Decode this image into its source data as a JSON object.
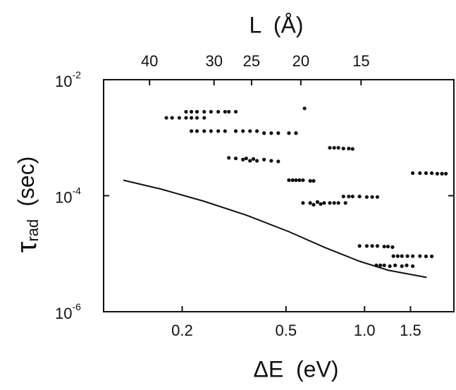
{
  "chart_data": {
    "type": "scatter",
    "x_label": "ΔE  (eV)",
    "top_x_label": "L  (Å)",
    "y_label": {
      "symbol": "τ",
      "subscript": "rad",
      "unit": "(sec)"
    },
    "xscale": "log",
    "yscale": "log",
    "xlim": [
      0.1,
      2.2
    ],
    "ylim": [
      1e-06,
      0.01
    ],
    "xticks": [
      0.2,
      0.5,
      {
        "value": 1,
        "label": "1.0"
      },
      1.5
    ],
    "top_xticks": [
      {
        "value": 0.15,
        "label": "40"
      },
      {
        "value": 0.265,
        "label": "30"
      },
      {
        "value": 0.369,
        "label": "25"
      },
      {
        "value": 0.57,
        "label": "20"
      },
      {
        "value": 0.97,
        "label": "15"
      }
    ],
    "yticks": [
      {
        "value": 0.01,
        "label": "10",
        "exponent": "-2"
      },
      {
        "value": 0.0001,
        "label": "10",
        "exponent": "-4"
      },
      {
        "value": 1e-06,
        "label": "10",
        "exponent": "-6"
      }
    ],
    "series": [
      {
        "type": "scatter",
        "color": "#111111",
        "x": [
          0.174,
          0.183,
          0.195,
          0.207,
          0.217,
          0.228,
          0.243
        ],
        "y": [
          0.0022,
          0.0022,
          0.0022,
          0.0022,
          0.0022,
          0.0022,
          0.0022
        ]
      },
      {
        "type": "scatter",
        "color": "#111111",
        "x": [
          0.207,
          0.217,
          0.228,
          0.243,
          0.258,
          0.275,
          0.292,
          0.302,
          0.321
        ],
        "y": [
          0.0028,
          0.0028,
          0.0028,
          0.0028,
          0.0028,
          0.0028,
          0.0028,
          0.0028,
          0.0028
        ]
      },
      {
        "type": "scatter",
        "color": "#111111",
        "x": [
          0.217,
          0.228,
          0.243,
          0.258,
          0.275,
          0.292,
          0.321,
          0.342,
          0.364,
          0.387,
          0.412,
          0.439,
          0.467,
          0.513,
          0.546
        ],
        "y": [
          0.0013,
          0.0013,
          0.0013,
          0.0013,
          0.0013,
          0.0013,
          0.0013,
          0.0013,
          0.0013,
          0.0013,
          0.0012,
          0.0012,
          0.0012,
          0.0012,
          0.0012
        ]
      },
      {
        "type": "scatter",
        "color": "#111111",
        "x": [
          0.589
        ],
        "y": [
          0.0032
        ]
      },
      {
        "type": "scatter",
        "color": "#111111",
        "x": [
          0.302,
          0.321,
          0.342,
          0.352,
          0.364,
          0.375,
          0.387,
          0.412,
          0.439,
          0.467
        ],
        "y": [
          0.00045,
          0.00044,
          0.00042,
          0.00044,
          0.0004,
          0.00043,
          0.0004,
          0.00042,
          0.0004,
          0.00039
        ]
      },
      {
        "type": "scatter",
        "color": "#111111",
        "x": [
          0.513,
          0.53,
          0.546,
          0.563,
          0.581,
          0.619,
          0.638
        ],
        "y": [
          0.000185,
          0.000185,
          0.000185,
          0.000185,
          0.000185,
          0.00018,
          0.00018
        ]
      },
      {
        "type": "scatter",
        "color": "#111111",
        "x": [
          0.581,
          0.619,
          0.638,
          0.66,
          0.679,
          0.7,
          0.736,
          0.765,
          0.794,
          0.845
        ],
        "y": [
          7.5e-05,
          7.5e-05,
          7e-05,
          7.8e-05,
          7.2e-05,
          7.5e-05,
          7.5e-05,
          7.5e-05,
          7.5e-05,
          7.5e-05
        ]
      },
      {
        "type": "scatter",
        "color": "#111111",
        "x": [
          0.736,
          0.765,
          0.794,
          0.83,
          0.87,
          0.9
        ],
        "y": [
          0.00067,
          0.00067,
          0.00067,
          0.00065,
          0.00065,
          0.00064
        ]
      },
      {
        "type": "scatter",
        "color": "#111111",
        "x": [
          0.83,
          0.87,
          0.9,
          0.957,
          1.02,
          1.07,
          1.12
        ],
        "y": [
          9.7e-05,
          9.7e-05,
          9.7e-05,
          9.7e-05,
          9.5e-05,
          9.5e-05,
          9.5e-05
        ]
      },
      {
        "type": "scatter",
        "color": "#111111",
        "x": [
          0.957,
          1.02,
          1.07,
          1.12,
          1.19,
          1.23,
          1.28
        ],
        "y": [
          1.36e-05,
          1.36e-05,
          1.36e-05,
          1.36e-05,
          1.33e-05,
          1.33e-05,
          1.3e-05
        ]
      },
      {
        "type": "scatter",
        "color": "#111111",
        "x": [
          1.11,
          1.15,
          1.19,
          1.25,
          1.31,
          1.39,
          1.45,
          1.53
        ],
        "y": [
          6.3e-06,
          6.3e-06,
          6.3e-06,
          6.1e-06,
          6.3e-06,
          6.1e-06,
          6.3e-06,
          6.1e-06
        ]
      },
      {
        "type": "scatter",
        "color": "#111111",
        "x": [
          1.29,
          1.34,
          1.39,
          1.46,
          1.53,
          1.63,
          1.72,
          1.81
        ],
        "y": [
          9.1e-06,
          9.1e-06,
          9.1e-06,
          9.1e-06,
          9.1e-06,
          9.1e-06,
          9e-06,
          9e-06
        ]
      },
      {
        "type": "scatter",
        "color": "#111111",
        "x": [
          1.53,
          1.63,
          1.72,
          1.81,
          1.9,
          1.98,
          2.05
        ],
        "y": [
          0.000245,
          0.000245,
          0.000245,
          0.000245,
          0.00024,
          0.00024,
          0.00024
        ]
      },
      {
        "type": "line",
        "color": "#111111",
        "x": [
          0.119,
          0.167,
          0.243,
          0.353,
          0.513,
          0.702,
          0.957,
          1.23,
          1.73
        ],
        "y": [
          0.000185,
          0.000129,
          8e-05,
          4.6e-05,
          2.4e-05,
          1.29e-05,
          7.4e-06,
          5.2e-06,
          3.9e-06
        ]
      }
    ]
  }
}
